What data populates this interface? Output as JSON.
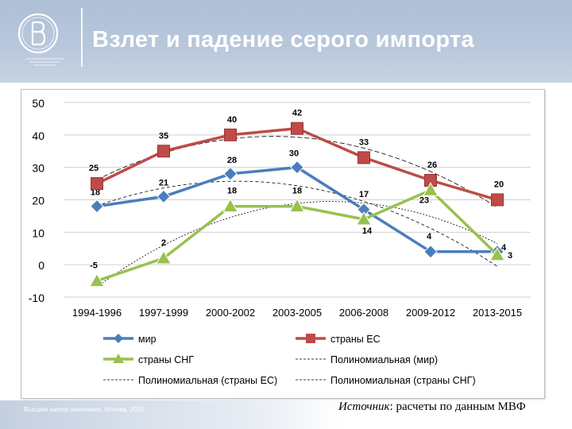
{
  "header": {
    "title": "Взлет и падение серого импорта",
    "logo_text": "НАЦИОНАЛЬНЫЙ ИССЛЕДОВАТЕЛЬСКИЙ УНИВЕРСИТЕТ"
  },
  "footer": {
    "left_text": "Высшая школа экономики, Москва, 2015",
    "source_label": "Источник",
    "source_text": ": расчеты по данным МВФ"
  },
  "colors": {
    "header_bg": "#b3c3d9",
    "mir": "#4a7ebb",
    "eu": "#be4b48",
    "sng": "#98c14f"
  },
  "chart_data": {
    "type": "line",
    "title": "",
    "categories": [
      "1994-1996",
      "1997-1999",
      "2000-2002",
      "2003-2005",
      "2006-2008",
      "2009-2012",
      "2013-2015"
    ],
    "ylim": [
      -10,
      50
    ],
    "yticks": [
      "50",
      "40",
      "30",
      "20",
      "10",
      "0",
      "-10"
    ],
    "grid": true,
    "series": [
      {
        "name": "мир",
        "values": [
          18,
          21,
          28,
          30,
          17,
          4,
          4
        ],
        "labels": [
          "18",
          "21",
          "28",
          "30",
          "17",
          "4",
          "4"
        ],
        "marker": "diamond"
      },
      {
        "name": "страны ЕС",
        "values": [
          25,
          35,
          40,
          42,
          33,
          26,
          20
        ],
        "labels": [
          "25",
          "35",
          "40",
          "42",
          "33",
          "26",
          "20"
        ],
        "marker": "square"
      },
      {
        "name": "страны СНГ",
        "values": [
          -5,
          2,
          18,
          18,
          14,
          23,
          3
        ],
        "labels": [
          "-5",
          "2",
          "18",
          "18",
          "14",
          "23",
          "3"
        ],
        "marker": "triangle"
      }
    ],
    "trendlines": [
      {
        "name": "Полиномиальная (мир)",
        "of": "мир"
      },
      {
        "name": "Полиномиальная (страны ЕС)",
        "of": "страны ЕС"
      },
      {
        "name": "Полиномиальная (страны СНГ)",
        "of": "страны СНГ"
      }
    ],
    "legend": [
      "мир",
      "страны ЕС",
      "страны СНГ",
      "Полиномиальная (мир)",
      "Полиномиальная (страны ЕС)",
      "Полиномиальная (страны СНГ)"
    ],
    "legend_position": "bottom"
  }
}
